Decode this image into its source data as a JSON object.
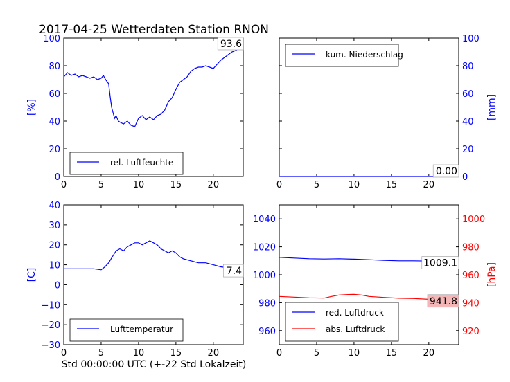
{
  "figure": {
    "title": "2017-04-25 Wetterdaten Station RNON",
    "xlabel": "Std 00:00:00 UTC (+-22 Std Lokalzeit)"
  },
  "colors": {
    "blue": "#0000ff",
    "red": "#ff0000",
    "axis": "#000000",
    "last_value_box_red": "#f4b6b6"
  },
  "chart_data": [
    {
      "id": "humidity",
      "type": "line",
      "ylabel": "[%]",
      "ylabel_color": "#0000ff",
      "y_axis_side": "left",
      "xlim": [
        0,
        24
      ],
      "ylim": [
        0,
        100
      ],
      "xticks": [
        0,
        5,
        10,
        15,
        20
      ],
      "yticks": [
        0,
        20,
        40,
        60,
        80,
        100
      ],
      "grid": false,
      "legend_position": "lower-left",
      "last_value_label": "93.6",
      "series": [
        {
          "name": "rel. Luftfeuchte",
          "color": "#0000ff",
          "x": [
            0,
            0.5,
            1,
            1.5,
            2,
            2.5,
            3,
            3.5,
            4,
            4.5,
            5,
            5.3,
            5.6,
            6,
            6.2,
            6.4,
            6.6,
            6.8,
            7,
            7.3,
            7.6,
            8,
            8.5,
            9,
            9.5,
            10,
            10.5,
            11,
            11.5,
            12,
            12.5,
            13,
            13.5,
            14,
            14.5,
            15,
            15.5,
            16,
            16.5,
            17,
            17.5,
            18,
            18.5,
            19,
            19.5,
            20,
            20.5,
            21,
            21.5,
            22,
            22.5,
            23,
            23.5,
            24
          ],
          "y": [
            72,
            75,
            73,
            74,
            72,
            73,
            72,
            71,
            72,
            70,
            71,
            73,
            70,
            67,
            58,
            50,
            46,
            42,
            44,
            40,
            39,
            38,
            40,
            37,
            36,
            42,
            44,
            41,
            43,
            41,
            44,
            45,
            48,
            54,
            57,
            63,
            68,
            70,
            72,
            76,
            78,
            79,
            79,
            80,
            79,
            78,
            81,
            84,
            86,
            88,
            90,
            91,
            93,
            93.6
          ]
        }
      ]
    },
    {
      "id": "precipitation",
      "type": "line",
      "ylabel": "[mm]",
      "ylabel_color": "#0000ff",
      "y_axis_side": "right",
      "xlim": [
        0,
        24
      ],
      "ylim": [
        0,
        100
      ],
      "xticks": [
        0,
        5,
        10,
        15,
        20
      ],
      "yticks": [
        0,
        20,
        40,
        60,
        80,
        100
      ],
      "grid": false,
      "legend_position": "upper-left",
      "last_value_label": "0.00",
      "series": [
        {
          "name": "kum. Niederschlag",
          "color": "#0000ff",
          "x": [
            0,
            24
          ],
          "y": [
            0,
            0
          ]
        }
      ]
    },
    {
      "id": "temperature",
      "type": "line",
      "ylabel": "[C]",
      "ylabel_color": "#0000ff",
      "y_axis_side": "left",
      "xlim": [
        0,
        24
      ],
      "ylim": [
        -30,
        40
      ],
      "xticks": [
        0,
        5,
        10,
        15,
        20
      ],
      "yticks": [
        -30,
        -20,
        -10,
        0,
        10,
        20,
        30,
        40
      ],
      "grid": false,
      "legend_position": "lower-left",
      "last_value_label": "7.4",
      "series": [
        {
          "name": "Lufttemperatur",
          "color": "#0000ff",
          "x": [
            0,
            1,
            2,
            3,
            4,
            5,
            5.5,
            6,
            6.5,
            7,
            7.5,
            8,
            8.5,
            9,
            9.5,
            10,
            10.5,
            11,
            11.5,
            12,
            12.5,
            13,
            13.5,
            14,
            14.5,
            15,
            15.5,
            16,
            17,
            18,
            19,
            20,
            21,
            22,
            23,
            24
          ],
          "y": [
            8,
            8,
            8,
            8,
            8,
            7.5,
            9,
            11,
            14,
            17,
            18,
            17,
            19,
            20,
            21,
            21,
            20,
            21,
            22,
            21,
            20,
            18,
            17,
            16,
            17,
            16,
            14,
            13,
            12,
            11,
            11,
            10,
            9,
            8.5,
            8,
            7.4
          ]
        }
      ]
    },
    {
      "id": "pressure",
      "type": "line",
      "ylabel": "[hPa]",
      "ylabel_color": "#ff0000",
      "xlim": [
        0,
        24
      ],
      "xticks": [
        0,
        5,
        10,
        15,
        20
      ],
      "left_axis": {
        "ylim": [
          950,
          1050
        ],
        "yticks": [
          960,
          980,
          1000,
          1020,
          1040
        ],
        "color": "#0000ff"
      },
      "right_axis": {
        "ylim": [
          910,
          1010
        ],
        "yticks": [
          920,
          940,
          960,
          980,
          1000
        ],
        "color": "#ff0000"
      },
      "grid": false,
      "legend_position": "lower-left",
      "last_value_labels": [
        "1009.1",
        "941.8"
      ],
      "series": [
        {
          "name": "red. Luftdruck",
          "color": "#0000ff",
          "axis": "left",
          "x": [
            0,
            2,
            4,
            6,
            8,
            10,
            12,
            14,
            16,
            18,
            20,
            22,
            24
          ],
          "y": [
            1012.5,
            1012,
            1011.5,
            1011.3,
            1011.5,
            1011.2,
            1010.8,
            1010.3,
            1010,
            1010,
            1009.8,
            1009.5,
            1009.1
          ]
        },
        {
          "name": "abs. Luftdruck",
          "color": "#ff0000",
          "axis": "right",
          "x": [
            0,
            2,
            4,
            6,
            7,
            8,
            9,
            10,
            11,
            12,
            14,
            16,
            18,
            20,
            22,
            24
          ],
          "y": [
            944.5,
            944,
            943.5,
            943.3,
            944.5,
            945.5,
            945.8,
            946,
            945.5,
            944.5,
            943.8,
            943.2,
            943,
            942.5,
            942.2,
            941.8
          ]
        }
      ]
    }
  ]
}
